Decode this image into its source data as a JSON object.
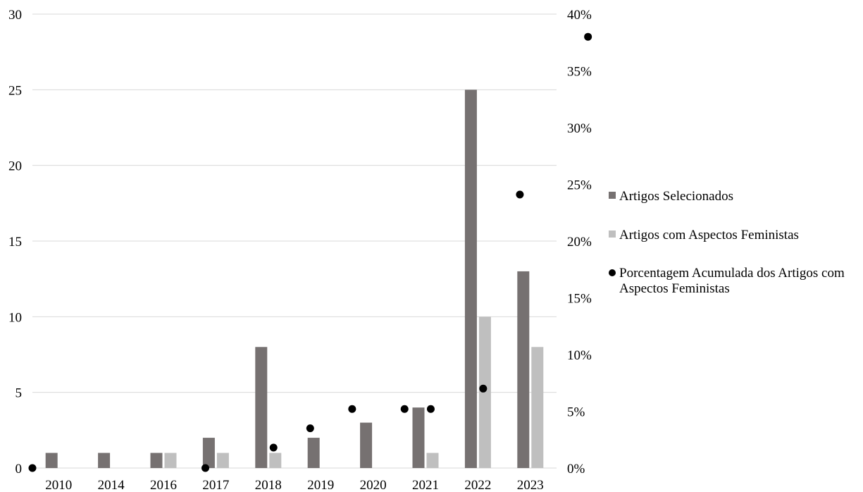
{
  "chart_data": {
    "type": "bar",
    "categories": [
      "2010",
      "2014",
      "2016",
      "2017",
      "2018",
      "2019",
      "2020",
      "2021",
      "2022",
      "2023"
    ],
    "series": [
      {
        "name": "Artigos Selecionados",
        "type": "bar",
        "axis": "left",
        "color": "#767171",
        "values": [
          1,
          1,
          1,
          2,
          8,
          2,
          3,
          4,
          25,
          13
        ]
      },
      {
        "name": "Artigos com Aspectos Feministas",
        "type": "bar",
        "axis": "left",
        "color": "#bfbfbf",
        "values": [
          0,
          0,
          1,
          1,
          1,
          0,
          0,
          1,
          10,
          8
        ]
      }
    ],
    "scatter_series": {
      "name_lines": [
        "Porcentagem Acumulada dos Artigos com",
        "Aspectos Feministas"
      ],
      "type": "scatter",
      "axis": "right",
      "color": "#000000",
      "x": [
        0.0,
        3.3,
        4.6,
        5.3,
        6.1,
        7.1,
        7.6,
        8.6,
        9.3,
        10.6
      ],
      "y": [
        0.0,
        0.0,
        1.8,
        3.5,
        5.2,
        5.2,
        5.2,
        7.0,
        24.1,
        38.0
      ]
    },
    "left_axis": {
      "ylim": [
        0,
        30
      ],
      "ticks": [
        "0",
        "5",
        "10",
        "15",
        "20",
        "25",
        "30"
      ]
    },
    "right_axis": {
      "ylim": [
        0,
        40
      ],
      "ticks": [
        "0%",
        "5%",
        "10%",
        "15%",
        "20%",
        "25%",
        "30%",
        "35%",
        "40%"
      ]
    },
    "grid": true,
    "legend_position": "right"
  }
}
